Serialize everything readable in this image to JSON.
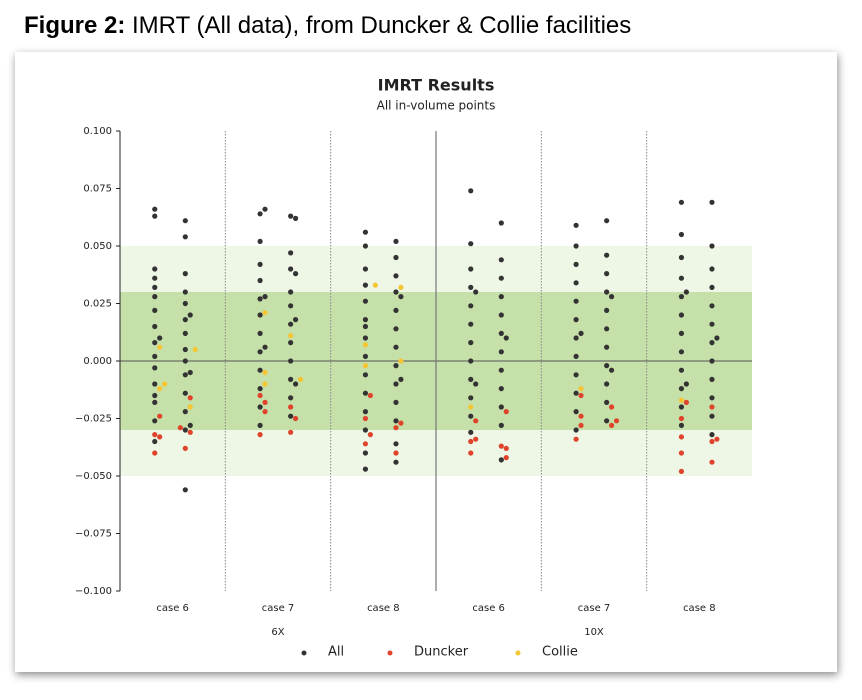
{
  "figure_label": "Figure 2:",
  "figure_caption": "IMRT (All data), from Duncker & Collie facilities",
  "chart_data": {
    "type": "strip",
    "title": "IMRT Results",
    "subtitle": "All in-volume points",
    "categories": [
      "case 6",
      "case 7",
      "case 8",
      "case 6",
      "case 7",
      "case 8"
    ],
    "groups": [
      "6X",
      "10X"
    ],
    "ylim": [
      -0.1,
      0.1
    ],
    "yticks": [
      {
        "value": 0.1,
        "label": "0.100"
      },
      {
        "value": 0.075,
        "label": "0.075"
      },
      {
        "value": 0.05,
        "label": "0.050"
      },
      {
        "value": 0.025,
        "label": "0.025"
      },
      {
        "value": 0,
        "label": "0.000"
      },
      {
        "value": -0.025,
        "label": "−0.025"
      },
      {
        "value": -0.05,
        "label": "−0.050"
      },
      {
        "value": -0.075,
        "label": "−0.075"
      },
      {
        "value": -0.1,
        "label": "−0.100"
      }
    ],
    "bands": [
      {
        "range": [
          -0.05,
          0.05
        ],
        "color": "#eef6e5"
      },
      {
        "range": [
          -0.03,
          0.03
        ],
        "color": "#c6e0a9"
      }
    ],
    "reference_line": 0,
    "series": [
      {
        "name": "All",
        "color": "#333333",
        "values": [
          [
            0.063,
            0.054,
            0.066,
            0.061,
            0.04,
            0.038,
            0.036,
            0.03,
            0.028,
            0.025,
            0.022,
            0.018,
            0.015,
            0.012,
            0.008,
            0.005,
            0.002,
            0.0,
            -0.003,
            -0.006,
            -0.01,
            -0.014,
            -0.018,
            -0.022,
            -0.026,
            -0.03,
            -0.035,
            -0.056,
            0.032,
            0.02,
            0.01,
            -0.005,
            -0.015,
            -0.028
          ],
          [
            0.064,
            0.063,
            0.066,
            0.062,
            0.052,
            0.047,
            0.042,
            0.04,
            0.035,
            0.03,
            0.027,
            0.024,
            0.02,
            0.016,
            0.012,
            0.008,
            0.004,
            0.0,
            -0.004,
            -0.008,
            -0.012,
            -0.016,
            -0.02,
            -0.024,
            -0.028,
            0.038,
            0.028,
            0.018,
            0.006,
            -0.01
          ],
          [
            0.056,
            0.052,
            0.05,
            0.045,
            0.04,
            0.037,
            0.033,
            0.03,
            0.026,
            0.022,
            0.018,
            0.014,
            0.01,
            0.006,
            0.002,
            -0.002,
            -0.006,
            -0.01,
            -0.014,
            -0.018,
            -0.022,
            -0.026,
            -0.03,
            -0.036,
            -0.04,
            -0.044,
            -0.047,
            0.028,
            0.015,
            -0.008
          ],
          [
            0.074,
            0.06,
            0.051,
            0.044,
            0.04,
            0.036,
            0.032,
            0.028,
            0.024,
            0.02,
            0.016,
            0.012,
            0.008,
            0.004,
            0.0,
            -0.004,
            -0.008,
            -0.012,
            -0.016,
            -0.02,
            -0.024,
            -0.028,
            -0.031,
            -0.043,
            0.03,
            0.01,
            -0.01
          ],
          [
            0.059,
            0.061,
            0.05,
            0.046,
            0.042,
            0.038,
            0.034,
            0.03,
            0.026,
            0.022,
            0.018,
            0.014,
            0.01,
            0.006,
            0.002,
            -0.002,
            -0.006,
            -0.01,
            -0.014,
            -0.018,
            -0.022,
            -0.026,
            -0.03,
            0.028,
            0.012,
            -0.004
          ],
          [
            0.069,
            0.069,
            0.055,
            0.05,
            0.045,
            0.04,
            0.036,
            0.032,
            0.028,
            0.024,
            0.02,
            0.016,
            0.012,
            0.008,
            0.004,
            0.0,
            -0.004,
            -0.008,
            -0.012,
            -0.016,
            -0.02,
            -0.024,
            -0.028,
            -0.032,
            0.03,
            0.01,
            -0.01
          ]
        ]
      },
      {
        "name": "Duncker",
        "color": "#e0432b",
        "values": [
          [
            -0.024,
            -0.029,
            -0.032,
            -0.038,
            -0.04,
            -0.016,
            -0.033,
            -0.031
          ],
          [
            -0.015,
            -0.02,
            -0.022,
            -0.031,
            -0.032,
            -0.025,
            -0.018
          ],
          [
            -0.025,
            -0.027,
            -0.015,
            -0.029,
            -0.032,
            -0.04,
            -0.036
          ],
          [
            -0.04,
            -0.042,
            -0.035,
            -0.037,
            -0.026,
            -0.022,
            -0.034,
            -0.038
          ],
          [
            -0.024,
            -0.028,
            -0.034,
            -0.02,
            -0.015,
            -0.026,
            -0.028
          ],
          [
            -0.033,
            -0.035,
            -0.018,
            -0.02,
            -0.025,
            -0.034,
            -0.04,
            -0.044,
            -0.048
          ]
        ]
      },
      {
        "name": "Collie",
        "color": "#f5c533",
        "values": [
          [
            0.006,
            0.005,
            -0.01,
            -0.02,
            -0.012
          ],
          [
            0.021,
            0.011,
            -0.005,
            -0.008,
            -0.01
          ],
          [
            0.033,
            0.032,
            0.007,
            0.0,
            -0.002
          ],
          [
            -0.02
          ],
          [
            -0.012
          ],
          [
            -0.017
          ]
        ]
      }
    ]
  }
}
